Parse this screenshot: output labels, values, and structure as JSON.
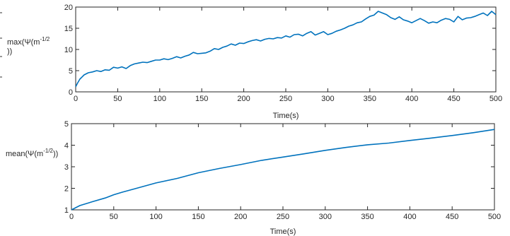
{
  "chart_data": [
    {
      "type": "line",
      "title": "",
      "xlabel": "Time(s)",
      "ylabel": "max(Ψ(m^-1/2))",
      "ylabel_parts": {
        "prefix": "max(Ψ(m",
        "superscript": "-1/2",
        "suffix": "))"
      },
      "xlim": [
        0,
        500
      ],
      "ylim": [
        0,
        20
      ],
      "xticks": [
        0,
        50,
        100,
        150,
        200,
        250,
        300,
        350,
        400,
        450,
        500
      ],
      "yticks": [
        0,
        5,
        10,
        15,
        20
      ],
      "grid": false,
      "color": "#0072BD",
      "series": [
        {
          "x": [
            0,
            2,
            5,
            8,
            10,
            15,
            20,
            25,
            30,
            35,
            40,
            45,
            50,
            55,
            60,
            65,
            70,
            75,
            80,
            85,
            90,
            95,
            100,
            105,
            110,
            115,
            120,
            125,
            130,
            135,
            140,
            145,
            150,
            155,
            160,
            165,
            170,
            175,
            180,
            185,
            190,
            195,
            200,
            205,
            210,
            215,
            220,
            225,
            230,
            235,
            240,
            245,
            250,
            255,
            260,
            265,
            270,
            275,
            280,
            285,
            290,
            295,
            300,
            305,
            310,
            315,
            320,
            325,
            330,
            335,
            340,
            345,
            350,
            355,
            360,
            365,
            370,
            375,
            380,
            385,
            390,
            395,
            400,
            405,
            410,
            415,
            420,
            425,
            430,
            435,
            440,
            445,
            450,
            455,
            460,
            465,
            470,
            475,
            480,
            485,
            490,
            495,
            500
          ],
          "values": [
            1.2,
            2.0,
            3.0,
            3.6,
            4.0,
            4.5,
            4.7,
            5.0,
            4.8,
            5.2,
            5.1,
            5.8,
            5.6,
            5.9,
            5.5,
            6.2,
            6.6,
            6.8,
            7.0,
            6.9,
            7.2,
            7.5,
            7.5,
            7.8,
            7.6,
            7.9,
            8.3,
            8.0,
            8.4,
            8.7,
            9.3,
            9.0,
            9.1,
            9.2,
            9.6,
            10.2,
            10.0,
            10.5,
            10.8,
            11.3,
            11.0,
            11.5,
            11.4,
            11.8,
            12.1,
            12.3,
            12.0,
            12.4,
            12.6,
            12.5,
            12.8,
            12.7,
            13.2,
            12.9,
            13.5,
            13.6,
            13.2,
            13.8,
            14.2,
            13.4,
            13.8,
            14.2,
            13.5,
            13.8,
            14.3,
            14.6,
            15.0,
            15.5,
            15.8,
            16.3,
            16.5,
            17.2,
            17.8,
            18.1,
            19.0,
            18.6,
            18.2,
            17.5,
            17.1,
            17.7,
            17.0,
            16.7,
            16.3,
            16.8,
            17.3,
            16.8,
            16.2,
            16.5,
            16.3,
            16.9,
            17.3,
            17.1,
            16.5,
            17.8,
            17.0,
            17.4,
            17.5,
            17.8,
            18.2,
            18.6,
            18.0,
            19.0,
            18.2
          ]
        }
      ]
    },
    {
      "type": "line",
      "title": "",
      "xlabel": "Time(s)",
      "ylabel": "mean(Ψ(m^-1/2))",
      "ylabel_parts": {
        "prefix": "mean(Ψ(m",
        "superscript": "-1/2",
        "suffix": "))"
      },
      "xlim": [
        0,
        500
      ],
      "ylim": [
        1,
        5
      ],
      "xticks": [
        0,
        50,
        100,
        150,
        200,
        250,
        300,
        350,
        400,
        450,
        500
      ],
      "yticks": [
        1,
        2,
        3,
        4,
        5
      ],
      "grid": false,
      "color": "#0072BD",
      "series": [
        {
          "x": [
            0,
            10,
            25,
            40,
            50,
            60,
            75,
            100,
            125,
            150,
            175,
            200,
            225,
            250,
            275,
            300,
            325,
            350,
            375,
            400,
            425,
            450,
            475,
            500
          ],
          "values": [
            1.0,
            1.2,
            1.38,
            1.55,
            1.7,
            1.82,
            1.98,
            2.25,
            2.46,
            2.72,
            2.92,
            3.1,
            3.3,
            3.45,
            3.6,
            3.76,
            3.9,
            4.02,
            4.1,
            4.22,
            4.33,
            4.45,
            4.58,
            4.73
          ]
        }
      ]
    }
  ]
}
